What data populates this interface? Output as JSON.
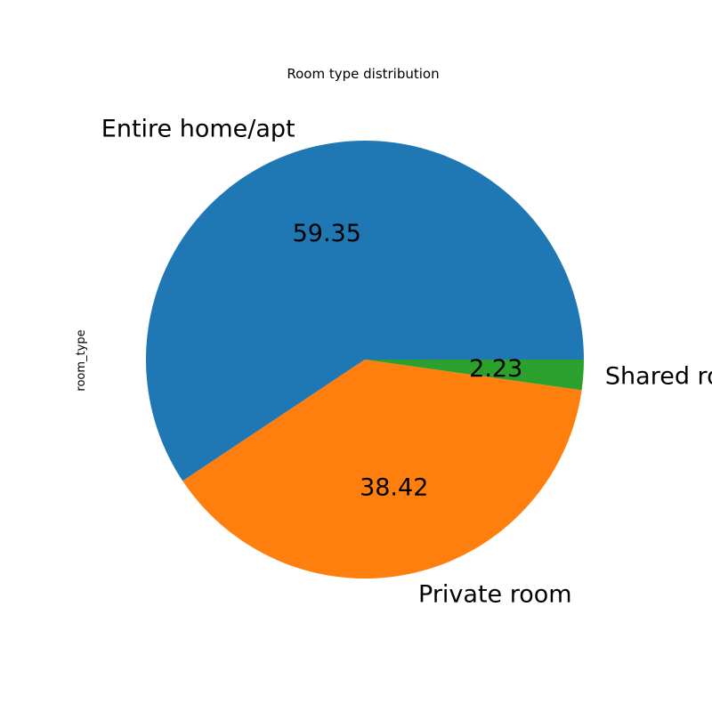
{
  "chart_data": {
    "type": "pie",
    "title": "Room type distribution",
    "ylabel": "room_type",
    "categories": [
      "Entire home/apt",
      "Private room",
      "Shared room"
    ],
    "values": [
      59.35,
      38.42,
      2.23
    ],
    "value_labels": [
      "59.35",
      "38.42",
      "2.23"
    ],
    "colors": [
      "#1f77b4",
      "#ff7f0e",
      "#2ca02c"
    ]
  }
}
